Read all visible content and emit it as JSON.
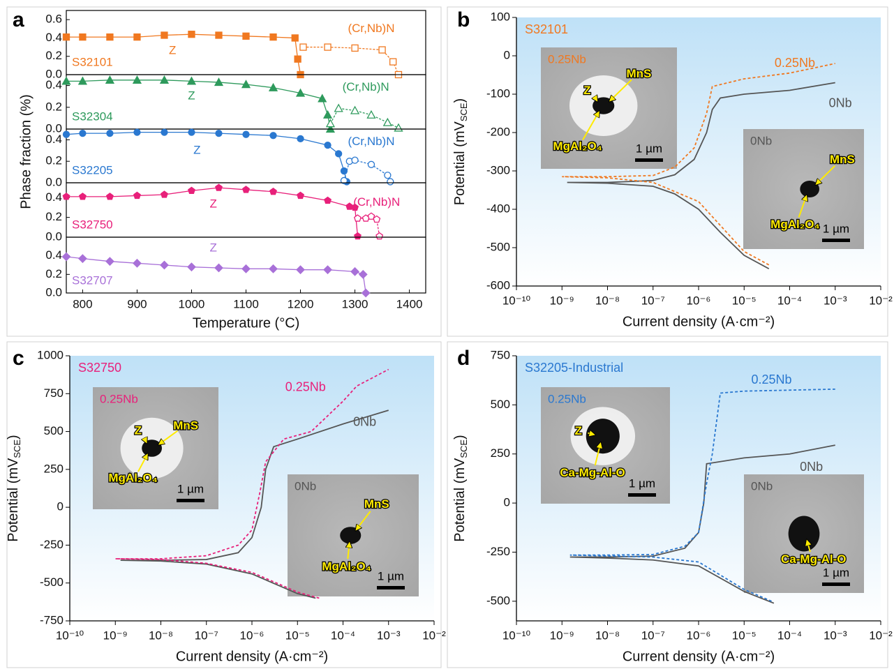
{
  "chart_data": [
    {
      "type": "line",
      "panel": "a",
      "sample": "S32101",
      "y_label": "Phase fraction (%)",
      "xlim": [
        770,
        1430
      ],
      "ylim": [
        0,
        0.7
      ],
      "yticks": [
        {
          "value": 0,
          "label": "0.0"
        },
        0.2,
        0.4,
        0.6
      ],
      "series": [
        {
          "name": "Z",
          "color": "#f07820",
          "marker": "square",
          "filled": true,
          "x": [
            770,
            800,
            850,
            900,
            950,
            1000,
            1050,
            1100,
            1150,
            1190,
            1195,
            1200
          ],
          "values": [
            0.41,
            0.41,
            0.41,
            0.41,
            0.43,
            0.44,
            0.43,
            0.42,
            0.41,
            0.4,
            0.17,
            0
          ]
        },
        {
          "name": "(Cr,Nb)N",
          "color": "#f07820",
          "marker": "square",
          "filled": false,
          "x": [
            1205,
            1250,
            1300,
            1350,
            1370,
            1380
          ],
          "values": [
            0.3,
            0.3,
            0.29,
            0.27,
            0.14,
            0
          ]
        }
      ]
    },
    {
      "type": "line",
      "sample": "S32304",
      "xlim": [
        770,
        1430
      ],
      "ylim": [
        0,
        0.5
      ],
      "yticks": [
        {
          "value": 0,
          "label": "0.0"
        },
        0.2,
        0.4
      ],
      "series": [
        {
          "name": "Z",
          "color": "#2e9a5c",
          "marker": "triangle",
          "filled": true,
          "x": [
            770,
            800,
            850,
            900,
            950,
            1000,
            1050,
            1100,
            1150,
            1200,
            1240,
            1250,
            1255
          ],
          "values": [
            0.44,
            0.44,
            0.45,
            0.45,
            0.45,
            0.44,
            0.43,
            0.41,
            0.38,
            0.33,
            0.28,
            0.13,
            0
          ]
        },
        {
          "name": "(Cr,Nb)N",
          "color": "#2e9a5c",
          "marker": "triangle",
          "filled": false,
          "x": [
            1255,
            1270,
            1300,
            1330,
            1360,
            1380
          ],
          "values": [
            0.05,
            0.19,
            0.17,
            0.13,
            0.06,
            0.01
          ]
        }
      ]
    },
    {
      "type": "line",
      "sample": "S32205",
      "xlim": [
        770,
        1430
      ],
      "ylim": [
        0,
        0.5
      ],
      "yticks": [
        {
          "value": 0,
          "label": "0.0"
        },
        0.2,
        0.4
      ],
      "series": [
        {
          "name": "Z",
          "color": "#2a78d0",
          "marker": "circle",
          "filled": true,
          "x": [
            770,
            800,
            850,
            900,
            950,
            1000,
            1050,
            1100,
            1150,
            1200,
            1250,
            1270,
            1280,
            1285
          ],
          "values": [
            0.45,
            0.46,
            0.46,
            0.47,
            0.47,
            0.47,
            0.46,
            0.45,
            0.44,
            0.41,
            0.35,
            0.27,
            0.11,
            0.01
          ]
        },
        {
          "name": "(Cr,Nb)N",
          "color": "#2a78d0",
          "marker": "circle",
          "filled": false,
          "x": [
            1280,
            1290,
            1300,
            1330,
            1360,
            1365
          ],
          "values": [
            0.02,
            0.2,
            0.21,
            0.17,
            0.07,
            0.01
          ]
        }
      ]
    },
    {
      "type": "line",
      "sample": "S32750",
      "xlim": [
        770,
        1430
      ],
      "ylim": [
        0,
        0.55
      ],
      "yticks": [
        {
          "value": 0,
          "label": "0.0"
        },
        0.2,
        0.4
      ],
      "series": [
        {
          "name": "Z",
          "color": "#e8207a",
          "marker": "pentagon",
          "filled": true,
          "x": [
            770,
            800,
            850,
            900,
            950,
            1000,
            1050,
            1100,
            1150,
            1200,
            1250,
            1290,
            1300,
            1305
          ],
          "values": [
            0.41,
            0.41,
            0.41,
            0.42,
            0.43,
            0.47,
            0.5,
            0.48,
            0.46,
            0.42,
            0.37,
            0.31,
            0.3,
            0.01
          ]
        },
        {
          "name": "(Cr,Nb)N",
          "color": "#e8207a",
          "marker": "pentagon",
          "filled": false,
          "x": [
            1305,
            1320,
            1330,
            1340,
            1345
          ],
          "values": [
            0.19,
            0.19,
            0.21,
            0.18,
            0.01
          ]
        }
      ]
    },
    {
      "type": "line",
      "sample": "S32707",
      "x_label": "Temperature (°C)",
      "xlim": [
        770,
        1430
      ],
      "ylim": [
        0,
        0.6
      ],
      "xticks": [
        800,
        900,
        1000,
        1100,
        1200,
        1300,
        1400
      ],
      "yticks": [
        {
          "value": 0,
          "label": "0.0"
        },
        0.2,
        0.4
      ],
      "series": [
        {
          "name": "Z",
          "color": "#a870d8",
          "marker": "diamond",
          "filled": true,
          "x": [
            770,
            800,
            850,
            900,
            950,
            1000,
            1050,
            1100,
            1150,
            1200,
            1250,
            1300,
            1315,
            1320
          ],
          "values": [
            0.39,
            0.37,
            0.34,
            0.32,
            0.3,
            0.28,
            0.27,
            0.26,
            0.26,
            0.25,
            0.25,
            0.23,
            0.2,
            0
          ]
        }
      ]
    },
    {
      "type": "polarization",
      "panel": "b",
      "sample": "S32101",
      "xscale": "log",
      "x_label": "Current density (A·cm⁻²)",
      "y_label": {
        "text": "Potential (mV",
        "sub": "SCE",
        "end": ")"
      },
      "xlim": [
        1e-10,
        0.01
      ],
      "ylim": [
        -600,
        100
      ],
      "xticks": [
        {
          "value": 1e-10,
          "label": "10⁻¹⁰"
        },
        {
          "value": 1e-09,
          "label": "10⁻⁹"
        },
        {
          "value": 1e-08,
          "label": "10⁻⁸"
        },
        {
          "value": 1e-07,
          "label": "10⁻⁷"
        },
        {
          "value": 1e-06,
          "label": "10⁻⁶"
        },
        {
          "value": 1e-05,
          "label": "10⁻⁵"
        },
        {
          "value": 0.0001,
          "label": "10⁻⁴"
        },
        {
          "value": 0.001,
          "label": "10⁻³"
        },
        {
          "value": 0.01,
          "label": "10⁻²"
        }
      ],
      "yticks": [
        -600,
        -500,
        -400,
        -300,
        -200,
        -100,
        0,
        100
      ],
      "series": [
        {
          "name": "0Nb",
          "color": "#555555",
          "dashed": false,
          "x": [
            3.5e-05,
            1e-05,
            3e-06,
            1e-06,
            3e-07,
            1e-07,
            1e-08,
            1.3e-09,
            1e-08,
            1e-07,
            3e-07,
            8e-07,
            1.5e-06,
            2e-06,
            3e-06,
            1e-05,
            0.0001,
            0.001
          ],
          "values": [
            -555,
            -520,
            -460,
            -400,
            -360,
            -340,
            -332,
            -330,
            -330,
            -325,
            -310,
            -270,
            -200,
            -140,
            -110,
            -100,
            -90,
            -70
          ]
        },
        {
          "name": "0.25Nb",
          "color": "#f07820",
          "dashed": true,
          "x": [
            3.5e-05,
            1e-05,
            1e-06,
            1e-07,
            1e-08,
            1e-09,
            1e-08,
            1e-07,
            3e-07,
            8e-07,
            1.5e-06,
            2e-06,
            1e-05,
            0.0001,
            0.001
          ],
          "values": [
            -545,
            -510,
            -380,
            -330,
            -318,
            -315,
            -315,
            -312,
            -290,
            -240,
            -150,
            -80,
            -60,
            -45,
            -20
          ]
        }
      ],
      "insets": [
        {
          "title": "0.25Nb",
          "labels": [
            "Z",
            "MnS",
            "MgAl₂O₄"
          ],
          "scale": "1 µm"
        },
        {
          "title": "0Nb",
          "labels": [
            "MnS",
            "MgAl₂O₄"
          ],
          "scale": "1 µm"
        }
      ]
    },
    {
      "type": "polarization",
      "panel": "c",
      "sample": "S32750",
      "xscale": "log",
      "x_label": "Current density (A·cm⁻²)",
      "y_label": {
        "text": "Potential (mV",
        "sub": "SCE",
        "end": ")"
      },
      "xlim": [
        1e-10,
        0.01
      ],
      "ylim": [
        -750,
        1000
      ],
      "xticks": [
        {
          "value": 1e-10,
          "label": "10⁻¹⁰"
        },
        {
          "value": 1e-09,
          "label": "10⁻⁹"
        },
        {
          "value": 1e-08,
          "label": "10⁻⁸"
        },
        {
          "value": 1e-07,
          "label": "10⁻⁷"
        },
        {
          "value": 1e-06,
          "label": "10⁻⁶"
        },
        {
          "value": 1e-05,
          "label": "10⁻⁵"
        },
        {
          "value": 0.0001,
          "label": "10⁻⁴"
        },
        {
          "value": 0.001,
          "label": "10⁻³"
        },
        {
          "value": 0.01,
          "label": "10⁻²"
        }
      ],
      "yticks": [
        -750,
        -500,
        -250,
        0,
        250,
        500,
        750,
        1000
      ],
      "series": [
        {
          "name": "0Nb",
          "color": "#555555",
          "dashed": false,
          "x": [
            2.5e-05,
            1e-05,
            1e-06,
            1e-07,
            1e-08,
            1.3e-09,
            1e-08,
            1e-07,
            5e-07,
            1e-06,
            1.6e-06,
            2e-06,
            3e-06,
            1e-05,
            0.0001,
            0.001
          ],
          "values": [
            -600,
            -570,
            -440,
            -375,
            -355,
            -350,
            -350,
            -345,
            -300,
            -200,
            0,
            250,
            400,
            450,
            550,
            640
          ]
        },
        {
          "name": "0.25Nb",
          "color": "#e8207a",
          "dashed": true,
          "x": [
            3e-05,
            1e-05,
            1e-06,
            1e-07,
            1e-08,
            1e-09,
            1e-08,
            1e-07,
            5e-07,
            1e-06,
            1.5e-06,
            2e-06,
            5e-06,
            2e-05,
            0.0001,
            0.0002,
            0.001
          ],
          "values": [
            -600,
            -560,
            -430,
            -370,
            -345,
            -340,
            -340,
            -320,
            -250,
            -150,
            100,
            300,
            450,
            500,
            700,
            800,
            910
          ]
        }
      ],
      "insets": [
        {
          "title": "0.25Nb",
          "labels": [
            "Z",
            "MnS",
            "MgAl₂O₄"
          ],
          "scale": "1 µm"
        },
        {
          "title": "0Nb",
          "labels": [
            "MnS",
            "MgAl₂O₄"
          ],
          "scale": "1 µm"
        }
      ]
    },
    {
      "type": "polarization",
      "panel": "d",
      "sample": "S32205-Industrial",
      "xscale": "log",
      "x_label": "Current density (A·cm⁻²)",
      "y_label": {
        "text": "Potential (mV",
        "sub": "SCE",
        "end": ")"
      },
      "xlim": [
        1e-10,
        0.01
      ],
      "ylim": [
        -600,
        750
      ],
      "xticks": [
        {
          "value": 1e-10,
          "label": "10⁻¹⁰"
        },
        {
          "value": 1e-09,
          "label": "10⁻⁹"
        },
        {
          "value": 1e-08,
          "label": "10⁻⁸"
        },
        {
          "value": 1e-07,
          "label": "10⁻⁷"
        },
        {
          "value": 1e-06,
          "label": "10⁻⁶"
        },
        {
          "value": 1e-05,
          "label": "10⁻⁵"
        },
        {
          "value": 0.0001,
          "label": "10⁻⁴"
        },
        {
          "value": 0.001,
          "label": "10⁻³"
        },
        {
          "value": 0.01,
          "label": "10⁻²"
        }
      ],
      "yticks": [
        -500,
        -250,
        0,
        250,
        500,
        750
      ],
      "series": [
        {
          "name": "0Nb",
          "color": "#555555",
          "dashed": false,
          "x": [
            4.5e-05,
            1e-05,
            1e-06,
            1e-07,
            1e-08,
            1.5e-09,
            1e-08,
            1e-07,
            5e-07,
            1e-06,
            1.3e-06,
            1.5e-06,
            1e-05,
            0.0001,
            0.001
          ],
          "values": [
            -510,
            -450,
            -320,
            -290,
            -280,
            -275,
            -275,
            -270,
            -230,
            -150,
            0,
            200,
            230,
            250,
            295
          ]
        },
        {
          "name": "0.25Nb",
          "color": "#2a78d0",
          "dashed": true,
          "x": [
            4e-05,
            1e-05,
            1e-06,
            1e-07,
            1.5e-09,
            1e-08,
            1e-07,
            5e-07,
            1e-06,
            1.5e-06,
            2e-06,
            3e-06,
            1e-05,
            0.0001,
            0.001
          ],
          "values": [
            -500,
            -440,
            -300,
            -275,
            -265,
            -265,
            -262,
            -220,
            -150,
            100,
            250,
            560,
            570,
            575,
            580
          ]
        }
      ],
      "insets": [
        {
          "title": "0.25Nb",
          "labels": [
            "Z",
            "Ca-Mg-Al-O"
          ],
          "scale": "1 µm"
        },
        {
          "title": "0Nb",
          "labels": [
            "Ca-Mg-Al-O"
          ],
          "scale": "1 µm"
        }
      ]
    }
  ]
}
